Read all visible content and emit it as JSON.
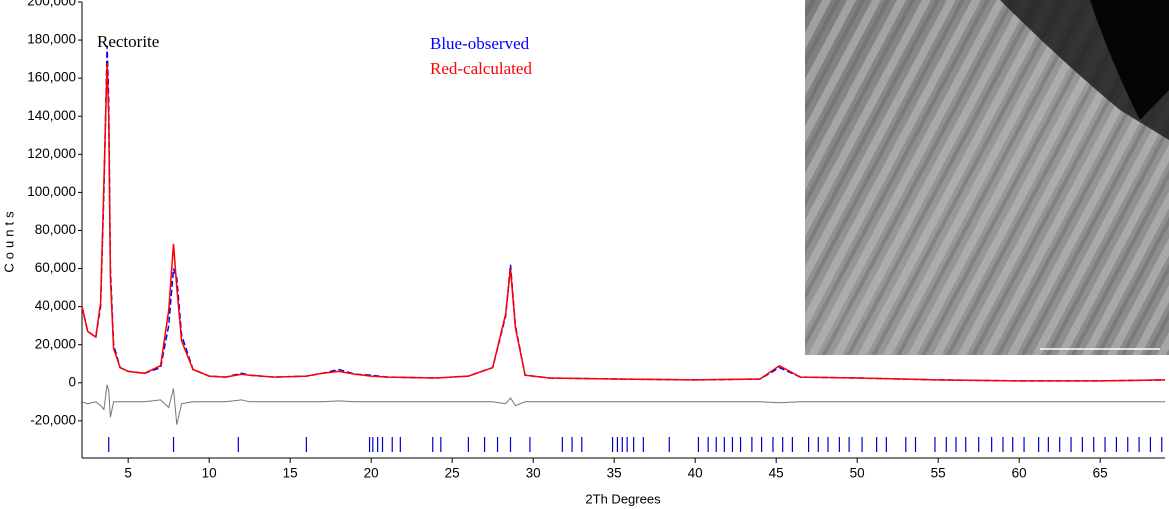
{
  "chart_data": {
    "type": "line",
    "annotations": [
      "Rectorite"
    ],
    "x_label": "2Th Degrees",
    "y_label": "Counts",
    "xlim": [
      2.15,
      69
    ],
    "ylim": [
      -39500,
      200000
    ],
    "xticks": [
      5,
      10,
      15,
      20,
      25,
      30,
      35,
      40,
      45,
      50,
      55,
      60,
      65
    ],
    "yticks": [
      {
        "value": 200000,
        "label": "200,000"
      },
      {
        "value": 180000,
        "label": "180,000"
      },
      {
        "value": 160000,
        "label": "160,000"
      },
      {
        "value": 140000,
        "label": "140,000"
      },
      {
        "value": 120000,
        "label": "120,000"
      },
      {
        "value": 100000,
        "label": "100,000"
      },
      {
        "value": 80000,
        "label": "80,000"
      },
      {
        "value": 60000,
        "label": "60,000"
      },
      {
        "value": 40000,
        "label": "40,000"
      },
      {
        "value": 20000,
        "label": "20,000"
      },
      0,
      {
        "value": -20000,
        "label": "-20,000"
      }
    ],
    "x": [
      2.15,
      2.5,
      3,
      3.3,
      3.5,
      3.7,
      3.8,
      3.9,
      4.1,
      4.5,
      5,
      6,
      7,
      7.5,
      7.8,
      8,
      8.3,
      9,
      10,
      11,
      12,
      12.5,
      14,
      16,
      17,
      18,
      19,
      20,
      21,
      24,
      26,
      27.5,
      28.3,
      28.6,
      28.9,
      29.5,
      31,
      35,
      40,
      44,
      45.2,
      46.5,
      50,
      55,
      60,
      65,
      69
    ],
    "series": [
      {
        "name": "Blue-observed",
        "color": "#0000ff",
        "values": [
          40000,
          27000,
          24000,
          40000,
          100000,
          177000,
          150000,
          60000,
          20000,
          8000,
          6000,
          5000,
          8000,
          30000,
          60000,
          55000,
          25000,
          7000,
          3500,
          3000,
          5000,
          4000,
          3000,
          3500,
          5000,
          7000,
          4500,
          4000,
          3000,
          2500,
          3500,
          8000,
          35000,
          62000,
          30000,
          4000,
          2500,
          2000,
          1500,
          2000,
          8000,
          3000,
          2500,
          1500,
          1000,
          1000,
          1500
        ]
      },
      {
        "name": "Red-calculated",
        "color": "#ff0000",
        "values": [
          40000,
          27000,
          24000,
          42000,
          105000,
          168000,
          140000,
          55000,
          18000,
          8000,
          6000,
          5000,
          9000,
          38000,
          73000,
          50000,
          22000,
          7000,
          3500,
          3000,
          4500,
          4000,
          3000,
          3500,
          5000,
          6000,
          4500,
          3500,
          3000,
          2500,
          3500,
          8000,
          36000,
          60000,
          29000,
          4000,
          2500,
          2000,
          1500,
          2000,
          9000,
          3000,
          2500,
          1500,
          1000,
          1000,
          1500
        ]
      },
      {
        "color": "#777777",
        "values": [
          -10000,
          -11000,
          -10000,
          -12000,
          -14000,
          -1000,
          -4000,
          -18000,
          -10000,
          -10000,
          -10000,
          -10000,
          -9000,
          -13000,
          -3000,
          -22000,
          -11000,
          -10000,
          -10000,
          -10000,
          -9000,
          -10000,
          -10000,
          -10000,
          -10000,
          -9500,
          -10000,
          -10000,
          -10000,
          -10000,
          -10000,
          -10000,
          -11000,
          -8000,
          -12000,
          -10000,
          -10000,
          -10000,
          -10000,
          -10000,
          -10500,
          -10000,
          -10000,
          -10000,
          -10000,
          -10000,
          -10000
        ]
      }
    ],
    "reflections": {
      "color": "#0000cc",
      "x": [
        3.8,
        7.8,
        11.8,
        16,
        19.9,
        20.1,
        20.4,
        20.7,
        21.3,
        21.8,
        23.8,
        24.3,
        26,
        27,
        27.8,
        28.6,
        29.8,
        31.8,
        32.4,
        33,
        34.9,
        35.2,
        35.5,
        35.8,
        36.2,
        36.8,
        38.4,
        40.2,
        40.8,
        41.3,
        41.8,
        42.3,
        42.8,
        43.5,
        44.1,
        44.8,
        45.4,
        46,
        47,
        47.6,
        48.2,
        48.9,
        49.5,
        50.3,
        51.2,
        51.8,
        53,
        53.6,
        54.8,
        55.5,
        56.1,
        56.7,
        57.5,
        58.3,
        59,
        59.6,
        60.3,
        61.2,
        61.8,
        62.5,
        63.2,
        63.9,
        64.6,
        65.3,
        66,
        66.7,
        67.4,
        68.1,
        68.8
      ]
    }
  }
}
